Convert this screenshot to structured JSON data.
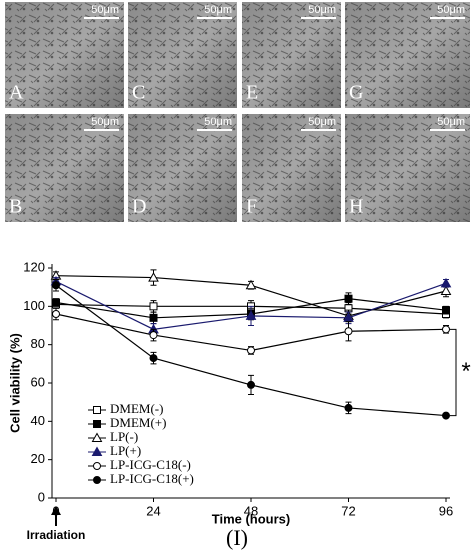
{
  "panels": [
    {
      "label": "A",
      "scale": "50μm"
    },
    {
      "label": "C",
      "scale": "50μm"
    },
    {
      "label": "E",
      "scale": "50μm"
    },
    {
      "label": "G",
      "scale": "50μm"
    },
    {
      "label": "B",
      "scale": "50μm"
    },
    {
      "label": "D",
      "scale": "50μm"
    },
    {
      "label": "F",
      "scale": "50μm"
    },
    {
      "label": "H",
      "scale": "50μm"
    }
  ],
  "figure_label": "(I)",
  "chart_data": {
    "type": "line",
    "x_label": "Time (hours)",
    "y_label": "Cell viability (%)",
    "annotations": {
      "irradiation": "Irradiation",
      "significance": "*"
    },
    "x": [
      0,
      24,
      48,
      72,
      96
    ],
    "xlim": [
      0,
      96
    ],
    "xticks": [
      0,
      24,
      48,
      72,
      96
    ],
    "ylim": [
      0,
      120
    ],
    "yticks": [
      0,
      20,
      40,
      60,
      80,
      100,
      120
    ],
    "legend": "lower left",
    "series": [
      {
        "name": "DMEM(-)",
        "color": "#000000",
        "marker": "square-open",
        "values": [
          101,
          100,
          100,
          99,
          96
        ],
        "errors": [
          2,
          3,
          3,
          3,
          2
        ]
      },
      {
        "name": "DMEM(+)",
        "color": "#000000",
        "marker": "square-filled",
        "values": [
          102,
          94,
          96,
          104,
          98
        ],
        "errors": [
          2,
          3,
          3,
          3,
          2
        ]
      },
      {
        "name": "LP(-)",
        "color": "#000000",
        "marker": "triangle-open",
        "values": [
          116,
          115,
          111,
          95,
          108
        ],
        "errors": [
          2,
          4,
          2,
          3,
          3
        ]
      },
      {
        "name": "LP(+)",
        "color": "#1a1a6e",
        "marker": "triangle-filled",
        "values": [
          113,
          88,
          95,
          94,
          112
        ],
        "errors": [
          2,
          3,
          5,
          3,
          2
        ]
      },
      {
        "name": "LP-ICG-C18(-)",
        "color": "#000000",
        "marker": "circle-open",
        "values": [
          96,
          85,
          77,
          87,
          88
        ],
        "errors": [
          3,
          3,
          2,
          5,
          2
        ]
      },
      {
        "name": "LP-ICG-C18(+)",
        "color": "#000000",
        "marker": "circle-filled",
        "values": [
          111,
          73,
          59,
          47,
          43
        ],
        "errors": [
          3,
          3,
          5,
          3,
          1
        ]
      }
    ]
  }
}
